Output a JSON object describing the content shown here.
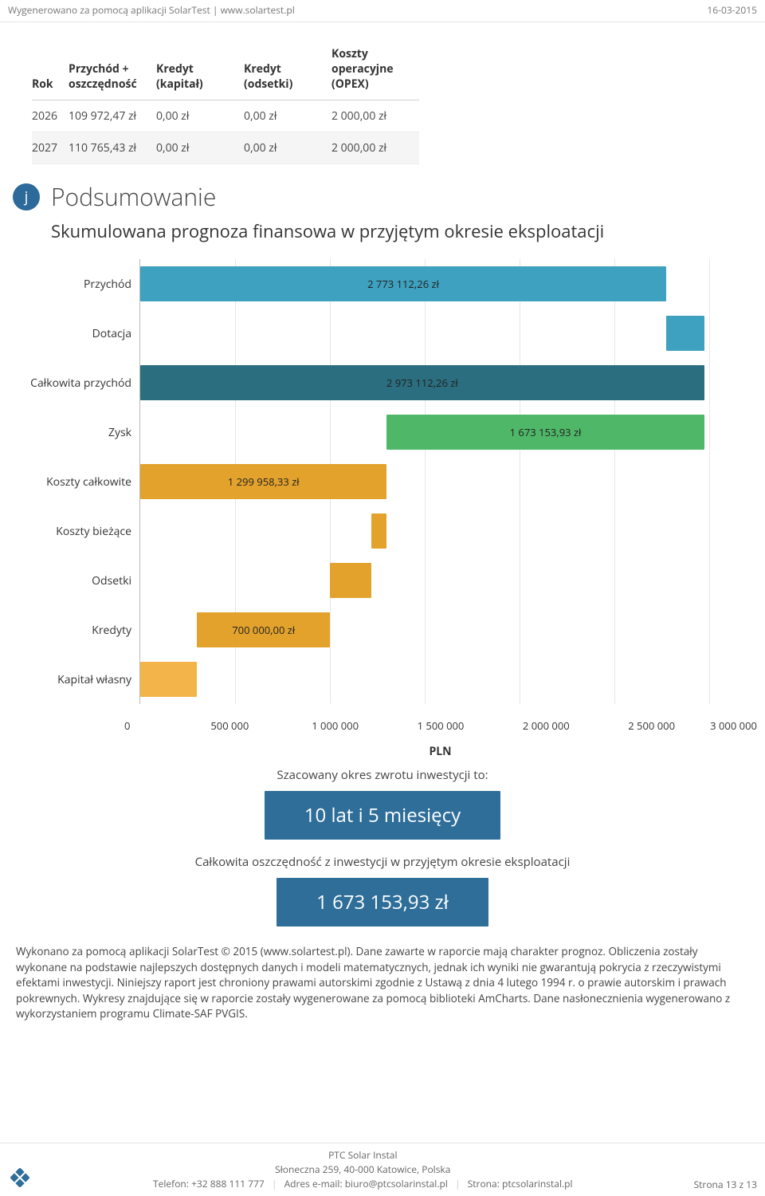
{
  "header": {
    "left": "Wygenerowano za pomocą aplikacji SolarTest | www.solartest.pl",
    "date": "16-03-2015"
  },
  "table": {
    "columns": [
      "Rok",
      "Przychód + oszczędność",
      "Kredyt (kapitał)",
      "Kredyt (odsetki)",
      "Koszty operacyjne (OPEX)"
    ],
    "rows": [
      [
        "2026",
        "109 972,47 zł",
        "0,00 zł",
        "0,00 zł",
        "2 000,00 zł"
      ],
      [
        "2027",
        "110 765,43 zł",
        "0,00 zł",
        "0,00 zł",
        "2 000,00 zł"
      ]
    ]
  },
  "section": {
    "badge": "j",
    "title": "Podsumowanie",
    "subtitle": "Skumulowana prognoza finansowa w przyjętym okresie eksploatacji"
  },
  "chart": {
    "type": "bar-horizontal",
    "x_max": 3000000,
    "x_ticks": [
      0,
      500000,
      1000000,
      1500000,
      2000000,
      2500000,
      3000000
    ],
    "x_tick_labels": [
      "0",
      "500 000",
      "1 000 000",
      "1 500 000",
      "2 000 000",
      "2 500 000",
      "3 000 000"
    ],
    "x_axis_title": "PLN",
    "grid_color": "#e6e6e6",
    "axis_color": "#b8b8b8",
    "background_color": "#ffffff",
    "label_fontsize": 14,
    "value_fontsize": 13,
    "bars": [
      {
        "label": "Przychód",
        "start": 0,
        "end": 2773112,
        "color": "#3ea1bf",
        "text": "2 773 112,26 zł"
      },
      {
        "label": "Dotacja",
        "start": 2773112,
        "end": 2973112,
        "color": "#3ea1bf",
        "text": ""
      },
      {
        "label": "Całkowita przychód",
        "start": 0,
        "end": 2973112,
        "color": "#2a6e7f",
        "text": "2 973 112,26 zł"
      },
      {
        "label": "Zysk",
        "start": 1299958,
        "end": 2973112,
        "color": "#4fb768",
        "text": "1 673 153,93 zł"
      },
      {
        "label": "Koszty całkowite",
        "start": 0,
        "end": 1299958,
        "color": "#e3a22c",
        "text": "1 299 958,33 zł"
      },
      {
        "label": "Koszty bieżące",
        "start": 1220000,
        "end": 1299958,
        "color": "#e3a22c",
        "text": ""
      },
      {
        "label": "Odsetki",
        "start": 1000000,
        "end": 1220000,
        "color": "#e3a22c",
        "text": ""
      },
      {
        "label": "Kredyty",
        "start": 300000,
        "end": 1000000,
        "color": "#e3a22c",
        "text": "700 000,00 zł"
      },
      {
        "label": "Kapitał własny",
        "start": 0,
        "end": 300000,
        "color": "#f3b54a",
        "text": ""
      }
    ]
  },
  "cta": {
    "payback_label": "Szacowany okres zwrotu inwestycji to:",
    "payback_value": "10 lat i 5 miesięcy",
    "savings_label": "Całkowita oszczędność z inwestycji w przyjętym okresie eksploatacji",
    "savings_value": "1 673 153,93 zł",
    "box_bg": "#2e6e99",
    "box_color": "#ffffff"
  },
  "disclaimer": "Wykonano za pomocą aplikacji SolarTest © 2015 (www.solartest.pl). Dane zawarte w raporcie mają charakter prognoz. Obliczenia zostały wykonane na podstawie najlepszych dostępnych danych i modeli matematycznych, jednak ich wyniki nie gwarantują pokrycia z rzeczywistymi efektami inwestycji. Niniejszy raport jest chroniony prawami autorskimi zgodnie z Ustawą z dnia 4 lutego 1994 r. o prawie autorskim i prawach pokrewnych. Wykresy znajdujące się w raporcie zostały wygenerowane za pomocą biblioteki AmCharts. Dane nasłonecznienia wygenerowano z wykorzystaniem programu Climate-SAF PVGIS.",
  "footer": {
    "company": "PTC Solar Instal",
    "address": "Słoneczna 259, 40-000 Katowice, Polska",
    "phone_label": "Telefon:",
    "phone": "+32 888 111 777",
    "email_label": "Adres e-mail:",
    "email": "biuro@ptcsolarinstal.pl",
    "site_label": "Strona:",
    "site": "ptcsolarinstal.pl",
    "page": "Strona 13 z 13"
  }
}
